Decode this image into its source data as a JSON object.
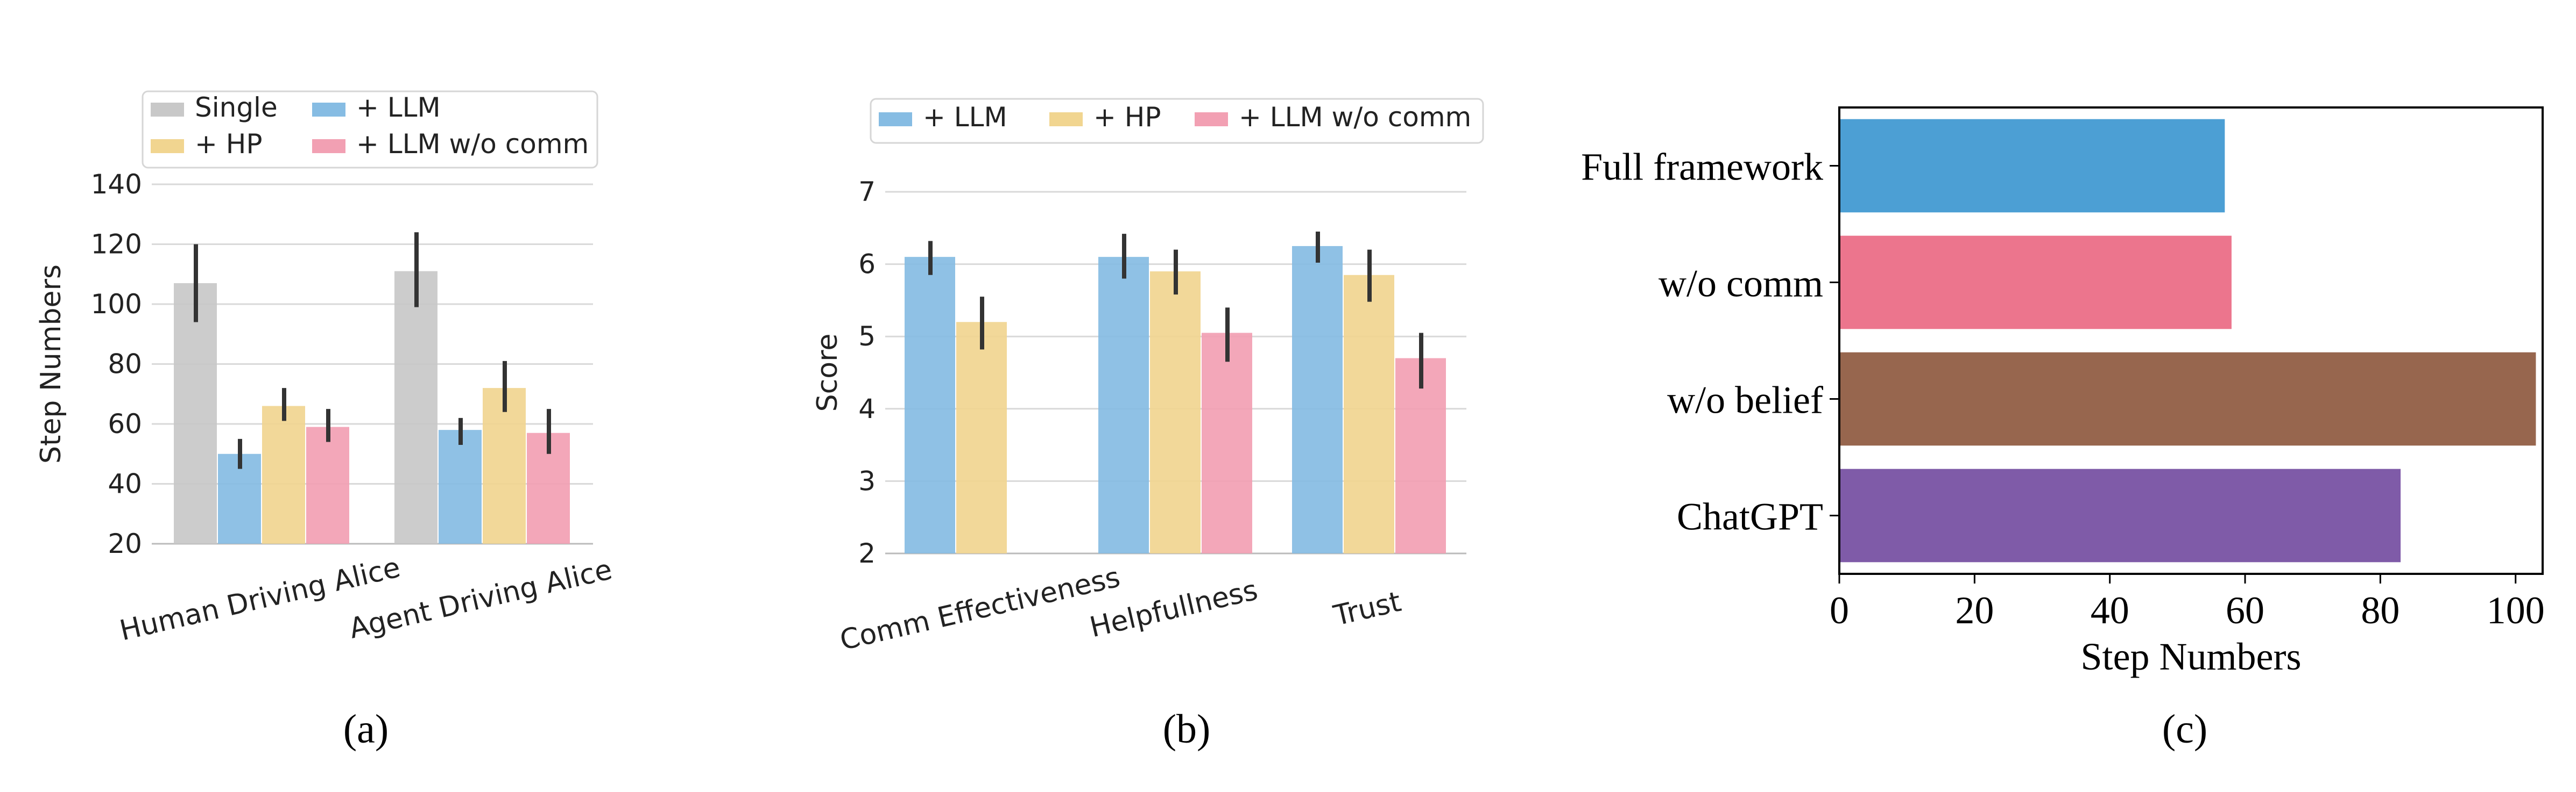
{
  "panels": {
    "a": {
      "caption": "(a)"
    },
    "b": {
      "caption": "(b)"
    },
    "c": {
      "caption": "(c)"
    }
  },
  "chart_data": [
    {
      "type": "bar",
      "panel": "a",
      "title": "",
      "xlabel": "",
      "ylabel": "Step Numbers",
      "ylim": [
        20,
        140
      ],
      "yticks": [
        20,
        40,
        60,
        80,
        100,
        120,
        140
      ],
      "grid": true,
      "legend_position": "top",
      "categories": [
        "Human Driving Alice",
        "Agent Driving Alice"
      ],
      "series": [
        {
          "name": "Single",
          "color": "#c8c8c8",
          "values": [
            107,
            111
          ],
          "error": [
            [
              94,
              120
            ],
            [
              99,
              124
            ]
          ]
        },
        {
          "name": "+ LLM",
          "color": "#86bce3",
          "values": [
            50,
            58
          ],
          "error": [
            [
              45,
              55
            ],
            [
              53,
              62
            ]
          ]
        },
        {
          "name": "+ HP",
          "color": "#f1d590",
          "values": [
            66,
            72
          ],
          "error": [
            [
              61,
              72
            ],
            [
              64,
              81
            ]
          ]
        },
        {
          "name": "+ LLM w/o comm",
          "color": "#f2a0b3",
          "values": [
            59,
            57
          ],
          "error": [
            [
              54,
              65
            ],
            [
              50,
              65
            ]
          ]
        }
      ]
    },
    {
      "type": "bar",
      "panel": "b",
      "title": "",
      "xlabel": "",
      "ylabel": "Score",
      "ylim": [
        2,
        7
      ],
      "yticks": [
        2,
        3,
        4,
        5,
        6,
        7
      ],
      "grid": true,
      "legend_position": "top",
      "categories": [
        "Comm Effectiveness",
        "Helpfullness",
        "Trust"
      ],
      "series": [
        {
          "name": "+ LLM",
          "color": "#86bce3",
          "values": [
            6.1,
            6.1,
            6.25
          ],
          "error": [
            [
              5.85,
              6.32
            ],
            [
              5.8,
              6.42
            ],
            [
              6.02,
              6.45
            ]
          ]
        },
        {
          "name": "+ HP",
          "color": "#f1d590",
          "values": [
            5.2,
            5.9,
            5.85
          ],
          "error": [
            [
              4.82,
              5.55
            ],
            [
              5.58,
              6.2
            ],
            [
              5.48,
              6.2
            ]
          ]
        },
        {
          "name": "+ LLM w/o comm",
          "color": "#f2a0b3",
          "values": [
            null,
            5.05,
            4.7
          ],
          "error": [
            null,
            [
              4.65,
              5.4
            ],
            [
              4.28,
              5.05
            ]
          ]
        }
      ]
    },
    {
      "type": "bar",
      "orientation": "horizontal",
      "panel": "c",
      "title": "",
      "xlabel": "Step Numbers",
      "ylabel": "",
      "xlim": [
        0,
        104
      ],
      "xticks": [
        0,
        20,
        40,
        60,
        80,
        100
      ],
      "grid": false,
      "categories": [
        "Full framework",
        "w/o comm",
        "w/o belief",
        "ChatGPT"
      ],
      "values": [
        57,
        58,
        103,
        83
      ],
      "colors": [
        "#4c9fd4",
        "#ec758d",
        "#97664e",
        "#7f5ba8"
      ]
    }
  ]
}
